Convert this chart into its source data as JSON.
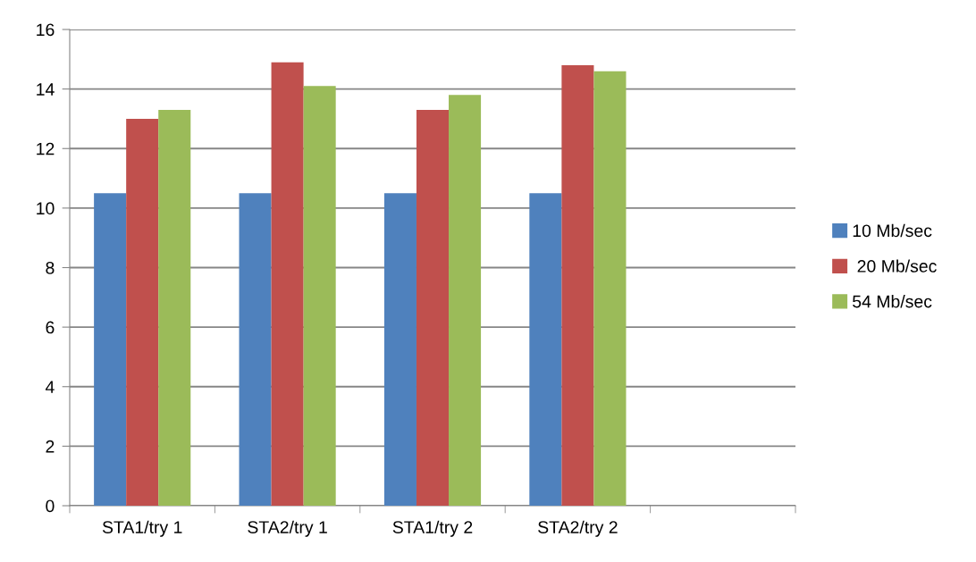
{
  "chart_data": {
    "type": "bar",
    "categories": [
      "STA1/try 1",
      "STA2/try 1",
      "STA1/try 2",
      "STA2/try 2",
      null
    ],
    "series": [
      {
        "name": "10 Mb/sec",
        "color": "#4f81bd",
        "values": [
          10.5,
          10.5,
          10.5,
          10.5,
          null
        ]
      },
      {
        "name": " 20 Mb/sec",
        "color": "#c0504d",
        "values": [
          13,
          14.9,
          13.3,
          14.8,
          null
        ]
      },
      {
        "name": "54 Mb/sec",
        "color": "#9bbb59",
        "values": [
          13.3,
          14.1,
          13.8,
          14.6,
          null
        ]
      }
    ],
    "ylim": [
      0,
      16
    ],
    "yticks": [
      0,
      2,
      4,
      6,
      8,
      10,
      12,
      14,
      16
    ],
    "grid": "y",
    "legend": "right"
  }
}
